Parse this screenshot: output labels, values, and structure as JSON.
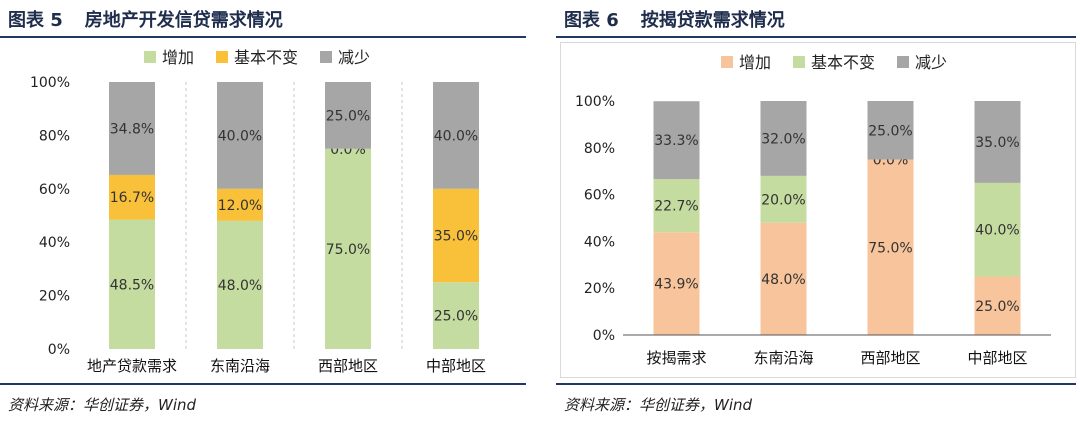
{
  "panels": [
    {
      "title_num": "图表 5",
      "title_text": "房地产开发信贷需求情况",
      "source": "资料来源：华创证券，Wind",
      "chart_data": {
        "type": "bar",
        "stacked": true,
        "percent": true,
        "categories": [
          "地产贷款需求",
          "东南沿海",
          "西部地区",
          "中部地区"
        ],
        "series": [
          {
            "name": "增加",
            "color": "#c5dca0",
            "values": [
              48.5,
              48.0,
              75.0,
              25.0
            ]
          },
          {
            "name": "基本不变",
            "color": "#f9c13a",
            "values": [
              16.7,
              12.0,
              0.0,
              35.0
            ]
          },
          {
            "name": "减少",
            "color": "#a6a6a6",
            "values": [
              34.8,
              40.0,
              25.0,
              40.0
            ]
          }
        ],
        "value_labels": [
          [
            "48.5%",
            "48.0%",
            "75.0%",
            "25.0%"
          ],
          [
            "16.7%",
            "12.0%",
            "0.0%",
            "35.0%"
          ],
          [
            "34.8%",
            "40.0%",
            "25.0%",
            "40.0%"
          ]
        ],
        "yticks": [
          "0%",
          "20%",
          "40%",
          "60%",
          "80%",
          "100%"
        ],
        "ylim": [
          0,
          100
        ],
        "grid": "vertical-dashed",
        "legend_position": "top-center"
      }
    },
    {
      "title_num": "图表 6",
      "title_text": "按揭贷款需求情况",
      "source": "资料来源：华创证券，Wind",
      "chart_data": {
        "type": "bar",
        "stacked": true,
        "percent": true,
        "categories": [
          "按揭需求",
          "东南沿海",
          "西部地区",
          "中部地区"
        ],
        "series": [
          {
            "name": "增加",
            "color": "#f8c49b",
            "values": [
              43.9,
              48.0,
              75.0,
              25.0
            ]
          },
          {
            "name": "基本不变",
            "color": "#c5dca0",
            "values": [
              22.7,
              20.0,
              0.0,
              40.0
            ]
          },
          {
            "name": "减少",
            "color": "#a6a6a6",
            "values": [
              33.3,
              32.0,
              25.0,
              35.0
            ]
          }
        ],
        "value_labels": [
          [
            "43.9%",
            "48.0%",
            "75.0%",
            "25.0%"
          ],
          [
            "22.7%",
            "20.0%",
            "0.0%",
            "40.0%"
          ],
          [
            "33.3%",
            "32.0%",
            "25.0%",
            "35.0%"
          ]
        ],
        "yticks": [
          "0%",
          "20%",
          "40%",
          "60%",
          "80%",
          "100%"
        ],
        "ylim": [
          0,
          100
        ],
        "grid": "none",
        "legend_position": "top-center"
      }
    }
  ]
}
